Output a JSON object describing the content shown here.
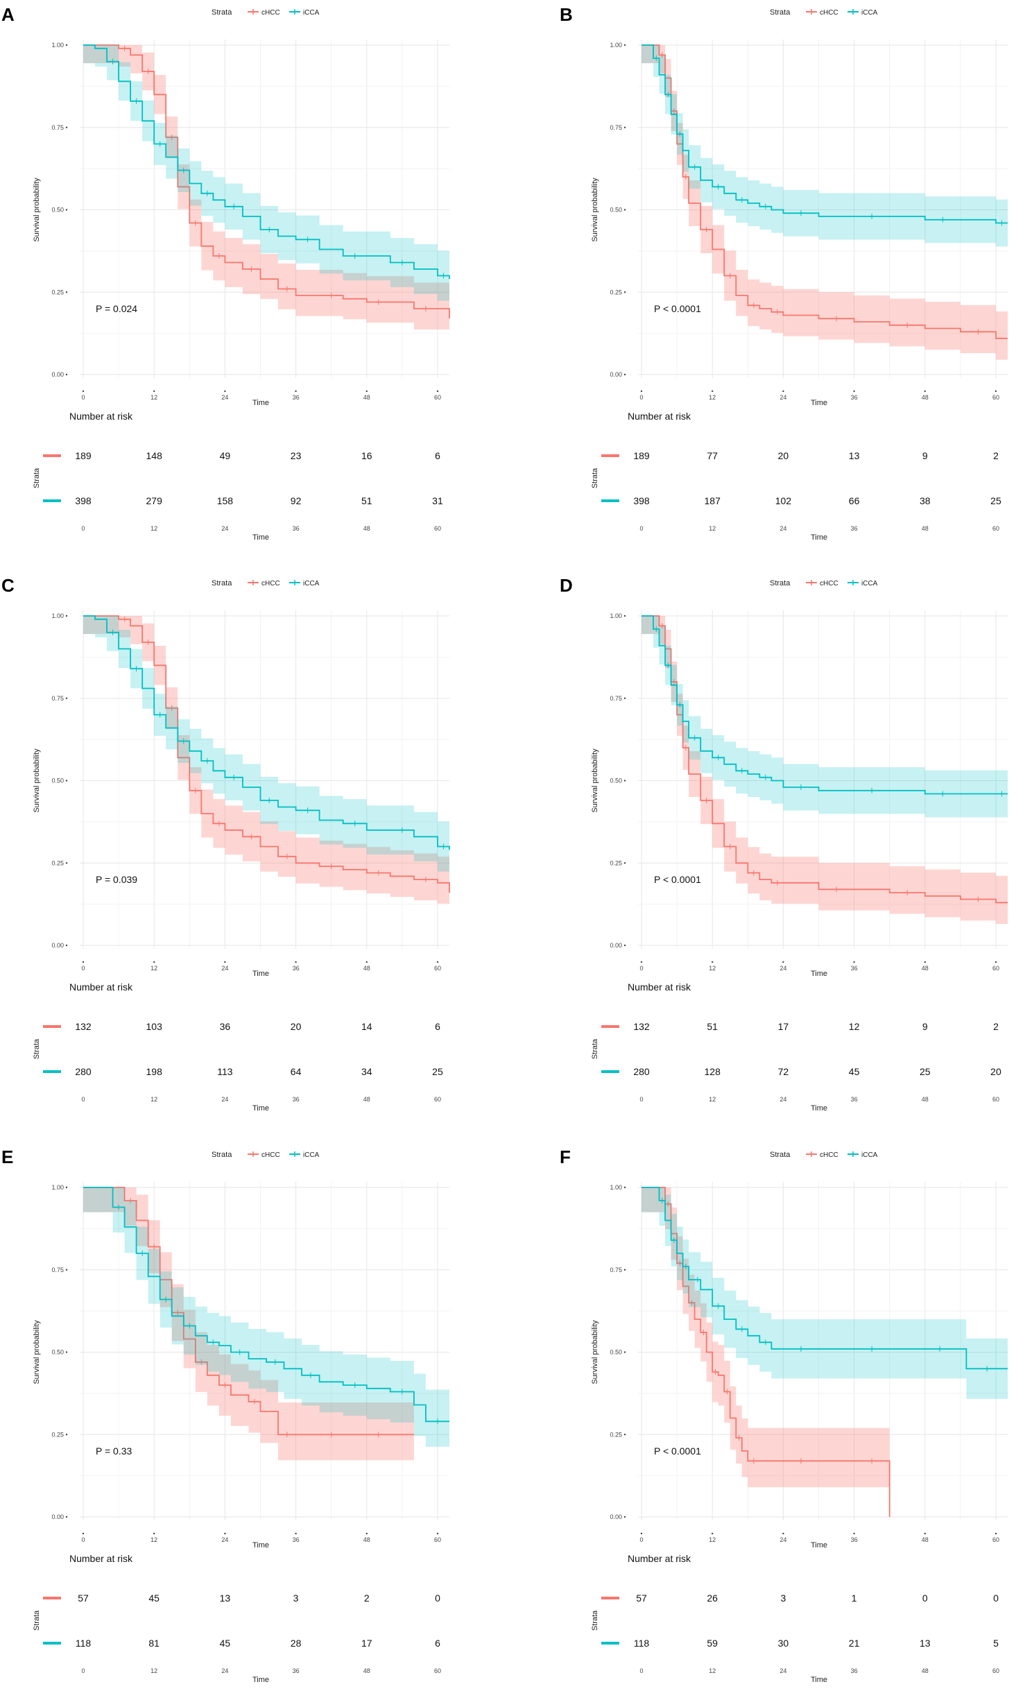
{
  "figure": {
    "strata_label": "Strata",
    "number_at_risk_label": "Number at risk",
    "strata_axis_label": "Strata",
    "colors": {
      "cHCC": "#F8766D",
      "iCCA": "#00BFC4"
    }
  },
  "chart_data": [
    {
      "panel": "A",
      "type": "line",
      "xlabel": "Time",
      "ylabel": "Survival probability",
      "xlim": [
        0,
        62
      ],
      "ylim": [
        0,
        1
      ],
      "x_ticks": [
        "0",
        "12",
        "24",
        "36",
        "48",
        "60"
      ],
      "y_ticks": [
        "0.00",
        "0.25",
        "0.50",
        "0.75",
        "1.00"
      ],
      "legend": [
        "cHCC",
        "iCCA"
      ],
      "p_value": "P = 0.024",
      "series": [
        {
          "name": "cHCC",
          "x": [
            0,
            4,
            6,
            8,
            10,
            12,
            14,
            16,
            18,
            20,
            22,
            24,
            27,
            30,
            33,
            36,
            40,
            44,
            48,
            52,
            56,
            60,
            62
          ],
          "y": [
            1.0,
            1.0,
            0.99,
            0.97,
            0.92,
            0.85,
            0.72,
            0.57,
            0.46,
            0.39,
            0.36,
            0.34,
            0.32,
            0.29,
            0.26,
            0.24,
            0.24,
            0.23,
            0.22,
            0.22,
            0.2,
            0.2,
            0.17
          ]
        },
        {
          "name": "iCCA",
          "x": [
            0,
            2,
            4,
            6,
            8,
            10,
            12,
            14,
            16,
            18,
            20,
            22,
            24,
            27,
            30,
            33,
            36,
            40,
            44,
            48,
            52,
            56,
            60,
            62
          ],
          "y": [
            1.0,
            0.99,
            0.95,
            0.89,
            0.83,
            0.77,
            0.7,
            0.66,
            0.62,
            0.58,
            0.55,
            0.53,
            0.51,
            0.48,
            0.44,
            0.42,
            0.41,
            0.38,
            0.36,
            0.36,
            0.34,
            0.32,
            0.3,
            0.29
          ]
        }
      ],
      "risk_table": {
        "times": [
          "0",
          "12",
          "24",
          "36",
          "48",
          "60"
        ],
        "rows": [
          {
            "name": "cHCC",
            "values": [
              "189",
              "148",
              "49",
              "23",
              "16",
              "6"
            ]
          },
          {
            "name": "iCCA",
            "values": [
              "398",
              "279",
              "158",
              "92",
              "51",
              "31"
            ]
          }
        ]
      }
    },
    {
      "panel": "B",
      "type": "line",
      "xlabel": "Time",
      "ylabel": "Survival probability",
      "xlim": [
        0,
        62
      ],
      "ylim": [
        0,
        1
      ],
      "x_ticks": [
        "0",
        "12",
        "24",
        "36",
        "48",
        "60"
      ],
      "y_ticks": [
        "0.00",
        "0.25",
        "0.50",
        "0.75",
        "1.00"
      ],
      "legend": [
        "cHCC",
        "iCCA"
      ],
      "p_value": "P < 0.0001",
      "series": [
        {
          "name": "cHCC",
          "x": [
            0,
            2,
            3,
            4,
            5,
            6,
            7,
            8,
            10,
            12,
            14,
            16,
            18,
            20,
            22,
            24,
            30,
            36,
            42,
            48,
            54,
            60,
            62
          ],
          "y": [
            1.0,
            1.0,
            0.97,
            0.9,
            0.8,
            0.7,
            0.6,
            0.52,
            0.44,
            0.38,
            0.3,
            0.24,
            0.21,
            0.2,
            0.19,
            0.18,
            0.17,
            0.16,
            0.15,
            0.14,
            0.13,
            0.11,
            0.11
          ]
        },
        {
          "name": "iCCA",
          "x": [
            0,
            1,
            2,
            3,
            4,
            5,
            6,
            7,
            8,
            10,
            12,
            14,
            16,
            18,
            20,
            22,
            24,
            30,
            36,
            42,
            48,
            54,
            60,
            62
          ],
          "y": [
            1.0,
            1.0,
            0.96,
            0.91,
            0.85,
            0.79,
            0.73,
            0.68,
            0.63,
            0.59,
            0.57,
            0.55,
            0.53,
            0.52,
            0.51,
            0.5,
            0.49,
            0.48,
            0.48,
            0.48,
            0.47,
            0.47,
            0.46,
            0.46
          ]
        }
      ],
      "risk_table": {
        "times": [
          "0",
          "12",
          "24",
          "36",
          "48",
          "60"
        ],
        "rows": [
          {
            "name": "cHCC",
            "values": [
              "189",
              "77",
              "20",
              "13",
              "9",
              "2"
            ]
          },
          {
            "name": "iCCA",
            "values": [
              "398",
              "187",
              "102",
              "66",
              "38",
              "25"
            ]
          }
        ]
      }
    },
    {
      "panel": "C",
      "type": "line",
      "xlabel": "Time",
      "ylabel": "Survival probability",
      "xlim": [
        0,
        62
      ],
      "ylim": [
        0,
        1
      ],
      "x_ticks": [
        "0",
        "12",
        "24",
        "36",
        "48",
        "60"
      ],
      "y_ticks": [
        "0.00",
        "0.25",
        "0.50",
        "0.75",
        "1.00"
      ],
      "legend": [
        "cHCC",
        "iCCA"
      ],
      "p_value": "P = 0.039",
      "series": [
        {
          "name": "cHCC",
          "x": [
            0,
            4,
            6,
            8,
            10,
            12,
            14,
            16,
            18,
            20,
            22,
            24,
            27,
            30,
            33,
            36,
            40,
            44,
            48,
            52,
            56,
            60,
            62
          ],
          "y": [
            1.0,
            1.0,
            0.99,
            0.97,
            0.92,
            0.85,
            0.72,
            0.57,
            0.47,
            0.4,
            0.37,
            0.35,
            0.33,
            0.3,
            0.27,
            0.25,
            0.24,
            0.23,
            0.22,
            0.21,
            0.2,
            0.19,
            0.16
          ]
        },
        {
          "name": "iCCA",
          "x": [
            0,
            2,
            4,
            6,
            8,
            10,
            12,
            14,
            16,
            18,
            20,
            22,
            24,
            27,
            30,
            33,
            36,
            40,
            44,
            48,
            52,
            56,
            60,
            62
          ],
          "y": [
            1.0,
            0.99,
            0.95,
            0.9,
            0.84,
            0.78,
            0.7,
            0.66,
            0.62,
            0.59,
            0.56,
            0.53,
            0.51,
            0.48,
            0.44,
            0.42,
            0.41,
            0.38,
            0.37,
            0.35,
            0.35,
            0.33,
            0.3,
            0.29
          ]
        }
      ],
      "risk_table": {
        "times": [
          "0",
          "12",
          "24",
          "36",
          "48",
          "60"
        ],
        "rows": [
          {
            "name": "cHCC",
            "values": [
              "132",
              "103",
              "36",
              "20",
              "14",
              "6"
            ]
          },
          {
            "name": "iCCA",
            "values": [
              "280",
              "198",
              "113",
              "64",
              "34",
              "25"
            ]
          }
        ]
      }
    },
    {
      "panel": "D",
      "type": "line",
      "xlabel": "Time",
      "ylabel": "Survival probability",
      "xlim": [
        0,
        62
      ],
      "ylim": [
        0,
        1
      ],
      "x_ticks": [
        "0",
        "12",
        "24",
        "36",
        "48",
        "60"
      ],
      "y_ticks": [
        "0.00",
        "0.25",
        "0.50",
        "0.75",
        "1.00"
      ],
      "legend": [
        "cHCC",
        "iCCA"
      ],
      "p_value": "P < 0.0001",
      "series": [
        {
          "name": "cHCC",
          "x": [
            0,
            2,
            3,
            4,
            5,
            6,
            7,
            8,
            10,
            12,
            14,
            16,
            18,
            20,
            22,
            24,
            30,
            36,
            42,
            48,
            54,
            60,
            62
          ],
          "y": [
            1.0,
            1.0,
            0.97,
            0.9,
            0.8,
            0.7,
            0.6,
            0.52,
            0.44,
            0.37,
            0.3,
            0.25,
            0.22,
            0.2,
            0.19,
            0.19,
            0.17,
            0.17,
            0.16,
            0.15,
            0.14,
            0.13,
            0.13
          ]
        },
        {
          "name": "iCCA",
          "x": [
            0,
            1,
            2,
            3,
            4,
            5,
            6,
            7,
            8,
            10,
            12,
            14,
            16,
            18,
            20,
            22,
            24,
            30,
            36,
            42,
            48,
            54,
            60,
            62
          ],
          "y": [
            1.0,
            1.0,
            0.96,
            0.91,
            0.85,
            0.79,
            0.73,
            0.68,
            0.63,
            0.59,
            0.57,
            0.55,
            0.53,
            0.52,
            0.51,
            0.5,
            0.48,
            0.47,
            0.47,
            0.47,
            0.46,
            0.46,
            0.46,
            0.46
          ]
        }
      ],
      "risk_table": {
        "times": [
          "0",
          "12",
          "24",
          "36",
          "48",
          "60"
        ],
        "rows": [
          {
            "name": "cHCC",
            "values": [
              "132",
              "51",
              "17",
              "12",
              "9",
              "2"
            ]
          },
          {
            "name": "iCCA",
            "values": [
              "280",
              "128",
              "72",
              "45",
              "25",
              "20"
            ]
          }
        ]
      }
    },
    {
      "panel": "E",
      "type": "line",
      "xlabel": "Time",
      "ylabel": "Survival probability",
      "xlim": [
        0,
        62
      ],
      "ylim": [
        0,
        1
      ],
      "x_ticks": [
        "0",
        "12",
        "24",
        "36",
        "48",
        "60"
      ],
      "y_ticks": [
        "0.00",
        "0.25",
        "0.50",
        "0.75",
        "1.00"
      ],
      "legend": [
        "cHCC",
        "iCCA"
      ],
      "p_value": "P = 0.33",
      "series": [
        {
          "name": "cHCC",
          "x": [
            0,
            5,
            7,
            9,
            11,
            13,
            15,
            17,
            19,
            21,
            23,
            25,
            28,
            30,
            33,
            36,
            40,
            44,
            48,
            52,
            56
          ],
          "y": [
            1.0,
            1.0,
            0.96,
            0.9,
            0.82,
            0.72,
            0.62,
            0.54,
            0.47,
            0.43,
            0.4,
            0.37,
            0.35,
            0.32,
            0.25,
            0.25,
            0.25,
            0.25,
            0.25,
            0.25,
            0.25
          ]
        },
        {
          "name": "iCCA",
          "x": [
            0,
            3,
            5,
            7,
            9,
            11,
            13,
            15,
            17,
            19,
            21,
            23,
            25,
            28,
            31,
            34,
            37,
            40,
            44,
            48,
            52,
            56,
            58,
            62
          ],
          "y": [
            1.0,
            1.0,
            0.94,
            0.88,
            0.8,
            0.73,
            0.66,
            0.61,
            0.58,
            0.55,
            0.53,
            0.52,
            0.5,
            0.48,
            0.47,
            0.45,
            0.43,
            0.41,
            0.4,
            0.39,
            0.38,
            0.34,
            0.29,
            0.29
          ]
        }
      ],
      "risk_table": {
        "times": [
          "0",
          "12",
          "24",
          "36",
          "48",
          "60"
        ],
        "rows": [
          {
            "name": "cHCC",
            "values": [
              "57",
              "45",
              "13",
              "3",
              "2",
              "0"
            ]
          },
          {
            "name": "iCCA",
            "values": [
              "118",
              "81",
              "45",
              "28",
              "17",
              "6"
            ]
          }
        ]
      }
    },
    {
      "panel": "F",
      "type": "line",
      "xlabel": "Time",
      "ylabel": "Survival probability",
      "xlim": [
        0,
        62
      ],
      "ylim": [
        0,
        1
      ],
      "x_ticks": [
        "0",
        "12",
        "24",
        "36",
        "48",
        "60"
      ],
      "y_ticks": [
        "0.00",
        "0.25",
        "0.50",
        "0.75",
        "1.00"
      ],
      "legend": [
        "cHCC",
        "iCCA"
      ],
      "p_value": "P < 0.0001",
      "series": [
        {
          "name": "cHCC",
          "x": [
            0,
            2,
            4,
            5,
            6,
            7,
            8,
            9,
            10,
            11,
            12,
            13,
            14,
            15,
            16,
            17,
            18,
            20,
            24,
            30,
            36,
            42,
            42
          ],
          "y": [
            1.0,
            1.0,
            0.95,
            0.86,
            0.77,
            0.7,
            0.65,
            0.6,
            0.56,
            0.5,
            0.44,
            0.43,
            0.38,
            0.3,
            0.24,
            0.2,
            0.17,
            0.17,
            0.17,
            0.17,
            0.17,
            0.17,
            0.0
          ]
        },
        {
          "name": "iCCA",
          "x": [
            0,
            2,
            3,
            4,
            5,
            6,
            7,
            8,
            9,
            10,
            12,
            14,
            16,
            18,
            20,
            22,
            24,
            30,
            36,
            42,
            48,
            53,
            55,
            62
          ],
          "y": [
            1.0,
            1.0,
            0.96,
            0.9,
            0.84,
            0.8,
            0.76,
            0.72,
            0.72,
            0.69,
            0.64,
            0.6,
            0.57,
            0.55,
            0.53,
            0.51,
            0.51,
            0.51,
            0.51,
            0.51,
            0.51,
            0.51,
            0.45,
            0.45
          ]
        }
      ],
      "risk_table": {
        "times": [
          "0",
          "12",
          "24",
          "36",
          "48",
          "60"
        ],
        "rows": [
          {
            "name": "cHCC",
            "values": [
              "57",
              "26",
              "3",
              "1",
              "0",
              "0"
            ]
          },
          {
            "name": "iCCA",
            "values": [
              "118",
              "59",
              "30",
              "21",
              "13",
              "5"
            ]
          }
        ]
      }
    }
  ]
}
